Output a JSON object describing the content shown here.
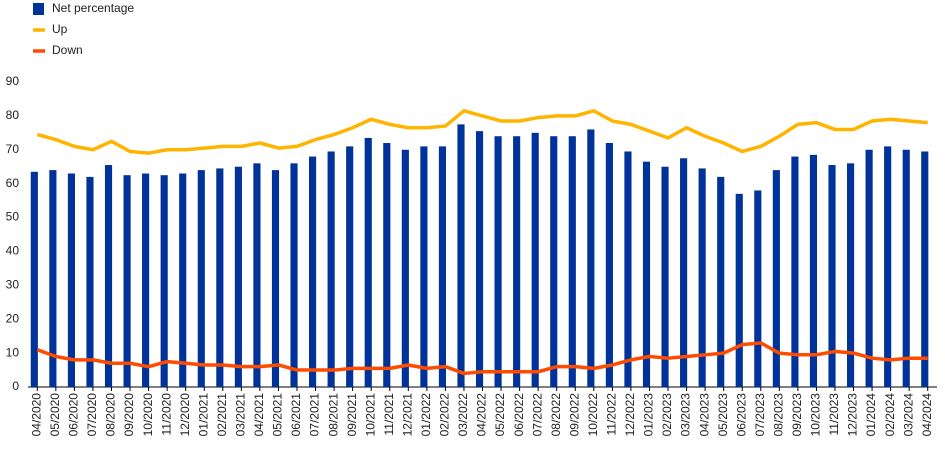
{
  "chart_data": {
    "type": "bar",
    "categories": [
      "04/2020",
      "05/2020",
      "06/2020",
      "07/2020",
      "08/2020",
      "09/2020",
      "10/2020",
      "11/2020",
      "12/2020",
      "01/2021",
      "02/2021",
      "03/2021",
      "04/2021",
      "05/2021",
      "06/2021",
      "07/2021",
      "08/2021",
      "09/2021",
      "10/2021",
      "11/2021",
      "12/2021",
      "01/2022",
      "02/2022",
      "03/2022",
      "04/2022",
      "05/2022",
      "06/2022",
      "07/2022",
      "08/2022",
      "09/2022",
      "10/2022",
      "11/2022",
      "12/2022",
      "01/2023",
      "02/2023",
      "03/2023",
      "04/2023",
      "05/2023",
      "06/2023",
      "07/2023",
      "08/2023",
      "09/2023",
      "10/2023",
      "11/2023",
      "12/2023",
      "01/2024",
      "02/2024",
      "03/2024",
      "04/2024"
    ],
    "series": [
      {
        "name": "Net percentage",
        "type": "bar",
        "color": "#003399",
        "values": [
          63.5,
          64,
          63,
          62,
          65.5,
          62.5,
          63,
          62.5,
          63,
          64,
          64.5,
          65,
          66,
          64,
          66,
          68,
          69.5,
          71,
          73.5,
          72,
          70,
          71,
          71,
          77.5,
          75.5,
          74,
          74,
          75,
          74,
          74,
          76,
          72,
          69.5,
          66.5,
          65,
          67.5,
          64.5,
          62,
          57,
          58,
          64,
          68,
          68.5,
          65.5,
          66,
          70,
          71,
          70,
          69.5
        ]
      },
      {
        "name": "Up",
        "type": "line",
        "color": "#ffb400",
        "values": [
          74.5,
          73,
          71,
          70,
          72.5,
          69.5,
          69,
          70,
          70,
          70.5,
          71,
          71,
          72,
          70.5,
          71,
          73,
          74.5,
          76.5,
          79,
          77.5,
          76.5,
          76.5,
          77,
          81.5,
          80,
          78.5,
          78.5,
          79.5,
          80,
          80,
          81.5,
          78.5,
          77.5,
          75.5,
          73.5,
          76.5,
          74,
          72,
          69.5,
          71,
          74,
          77.5,
          78,
          76,
          76,
          78.5,
          79,
          78.5,
          78
        ]
      },
      {
        "name": "Down",
        "type": "line",
        "color": "#ff4b00",
        "values": [
          11,
          9,
          8,
          8,
          7,
          7,
          6,
          7.5,
          7,
          6.5,
          6.5,
          6,
          6,
          6.5,
          5,
          5,
          5,
          5.5,
          5.5,
          5.5,
          6.5,
          5.5,
          6,
          4,
          4.5,
          4.5,
          4.5,
          4.5,
          6,
          6,
          5.5,
          6.5,
          8,
          9,
          8.5,
          9,
          9.5,
          10,
          12.5,
          13,
          10,
          9.5,
          9.5,
          10.5,
          10,
          8.5,
          8,
          8.5,
          8.5
        ]
      }
    ],
    "ylim": [
      0,
      90
    ],
    "yticks": [
      0,
      10,
      20,
      30,
      40,
      50,
      60,
      70,
      80,
      90
    ],
    "grid": false,
    "legend": "top-left"
  }
}
